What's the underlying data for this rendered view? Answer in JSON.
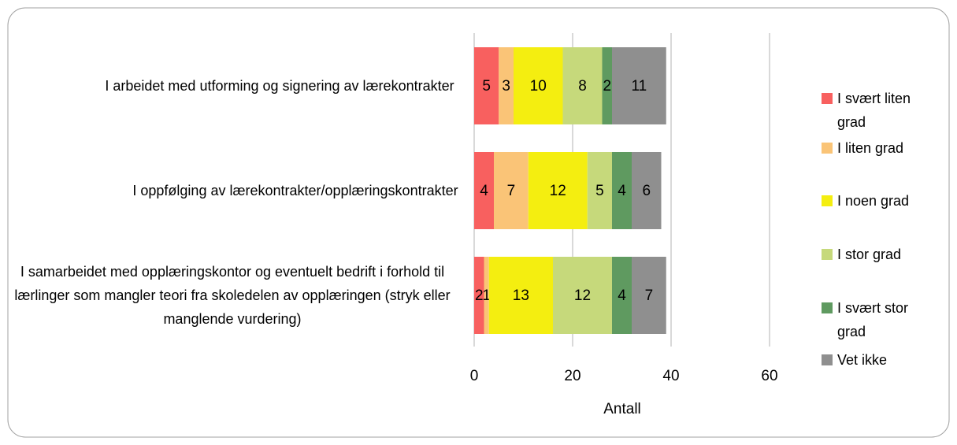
{
  "chart_data": {
    "type": "stacked_barh",
    "categories": [
      "I arbeidet med utforming og signering av lærekontrakter",
      "I oppfølging av lærekontrakter/opplæringskontrakter",
      "I samarbeidet med opplæringskontor og eventuelt bedrift i forhold til lærlinger som mangler teori fra skoledelen av opplæringen (stryk eller manglende vurdering)"
    ],
    "series": [
      {
        "name": "I svært liten grad",
        "color": "#f8605f",
        "values": [
          5,
          4,
          2
        ]
      },
      {
        "name": "I liten grad",
        "color": "#fac477",
        "values": [
          3,
          7,
          1
        ]
      },
      {
        "name": "I noen grad",
        "color": "#f4ee10",
        "values": [
          10,
          12,
          13
        ]
      },
      {
        "name": "I stor grad",
        "color": "#c6d97b",
        "values": [
          8,
          5,
          12
        ]
      },
      {
        "name": "I svært stor grad",
        "color": "#5f9a60",
        "values": [
          2,
          4,
          4
        ]
      },
      {
        "name": "Vet ikke",
        "color": "#8f8f8f",
        "values": [
          11,
          6,
          7
        ]
      }
    ],
    "xlabel": "Antall",
    "xlim": [
      0,
      60
    ],
    "xticks": [
      0,
      20,
      40,
      60
    ],
    "grid": true,
    "legend": "right"
  }
}
